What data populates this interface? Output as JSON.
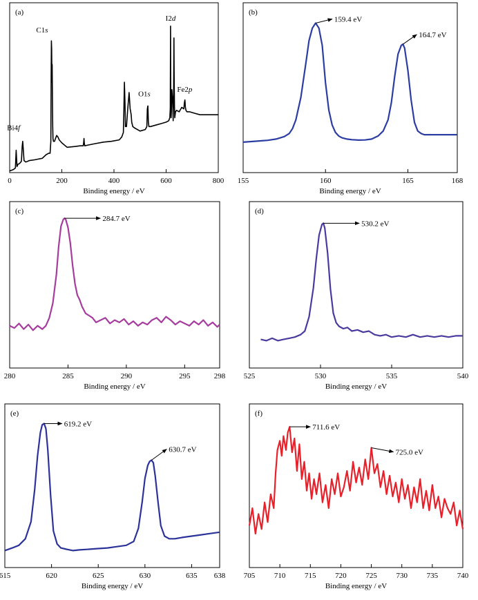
{
  "chart_data": [
    {
      "id": "a",
      "type": "line",
      "panel_label": "(a)",
      "xlabel": "Binding energy / eV",
      "ylabel": "",
      "xlim": [
        0,
        800
      ],
      "ylim": [
        0,
        1
      ],
      "xticks": [
        0,
        200,
        400,
        600,
        800
      ],
      "grid": false,
      "series": [
        {
          "color": "#000000",
          "x": [
            0,
            8,
            15,
            22,
            25,
            28,
            32,
            38,
            45,
            48,
            50,
            52,
            55,
            62,
            75,
            95,
            110,
            125,
            140,
            150,
            155,
            158,
            159,
            160,
            161,
            162,
            163,
            164,
            165,
            166,
            168,
            172,
            176,
            180,
            185,
            190,
            200,
            220,
            250,
            270,
            282,
            284,
            285,
            286,
            288,
            300,
            330,
            360,
            390,
            420,
            430,
            436,
            438,
            440,
            442,
            444,
            448,
            452,
            458,
            462,
            464,
            466,
            468,
            472,
            480,
            500,
            520,
            526,
            528,
            530,
            532,
            534,
            540,
            560,
            580,
            600,
            610,
            614,
            616,
            617,
            618,
            619,
            620,
            622,
            625,
            627,
            629,
            630,
            631,
            632,
            633,
            636,
            640,
            650,
            660,
            668,
            670,
            672,
            674,
            676,
            680,
            690,
            710,
            730,
            760,
            800
          ],
          "y": [
            0.0,
            0.005,
            0.01,
            0.02,
            0.14,
            0.03,
            0.045,
            0.05,
            0.065,
            0.165,
            0.2,
            0.155,
            0.07,
            0.06,
            0.07,
            0.075,
            0.08,
            0.085,
            0.11,
            0.12,
            0.12,
            0.2,
            0.6,
            0.88,
            0.82,
            0.6,
            0.72,
            0.5,
            0.3,
            0.22,
            0.2,
            0.2,
            0.22,
            0.24,
            0.23,
            0.21,
            0.19,
            0.16,
            0.165,
            0.17,
            0.17,
            0.195,
            0.22,
            0.19,
            0.17,
            0.175,
            0.185,
            0.195,
            0.2,
            0.21,
            0.23,
            0.26,
            0.4,
            0.6,
            0.47,
            0.3,
            0.3,
            0.4,
            0.53,
            0.42,
            0.4,
            0.38,
            0.33,
            0.3,
            0.29,
            0.27,
            0.28,
            0.3,
            0.42,
            0.44,
            0.33,
            0.3,
            0.3,
            0.31,
            0.32,
            0.33,
            0.34,
            0.36,
            0.42,
            0.98,
            0.45,
            0.36,
            0.4,
            0.55,
            0.48,
            0.34,
            0.55,
            0.9,
            0.6,
            0.44,
            0.36,
            0.4,
            0.41,
            0.4,
            0.43,
            0.42,
            0.46,
            0.48,
            0.43,
            0.41,
            0.4,
            0.4,
            0.39,
            0.38,
            0.38,
            0.38
          ]
        }
      ],
      "annotations": [
        {
          "text": "Bi4",
          "italic": "f",
          "x": 48,
          "y": 0.2
        },
        {
          "text": "C1",
          "italic": "s",
          "x": 160,
          "y": 0.88
        },
        {
          "text": "O1",
          "italic": "s",
          "x": 530,
          "y": 0.44
        },
        {
          "text": "I2",
          "italic": "d",
          "x": 619,
          "y": 0.98
        },
        {
          "text": "Fe2",
          "italic": "p",
          "x": 674,
          "y": 0.48
        }
      ]
    },
    {
      "id": "b",
      "type": "line",
      "panel_label": "(b)",
      "xlabel": "Binding energy / eV",
      "ylabel": "",
      "xlim": [
        155,
        168
      ],
      "ylim": [
        0,
        1
      ],
      "xticks": [
        155,
        160,
        165,
        168
      ],
      "grid": false,
      "series": [
        {
          "color": "#2B3DA3",
          "x": [
            155,
            155.5,
            156,
            156.5,
            157,
            157.5,
            157.8,
            158,
            158.2,
            158.5,
            158.8,
            159,
            159.2,
            159.4,
            159.6,
            159.8,
            160,
            160.2,
            160.4,
            160.6,
            160.8,
            161,
            161.3,
            161.6,
            162,
            162.4,
            162.8,
            163.2,
            163.5,
            163.8,
            164,
            164.2,
            164.4,
            164.6,
            164.7,
            164.8,
            165,
            165.2,
            165.4,
            165.6,
            165.8,
            166,
            166.3,
            166.6,
            167,
            167.5,
            168
          ],
          "y": [
            0.04,
            0.045,
            0.05,
            0.055,
            0.065,
            0.085,
            0.11,
            0.15,
            0.22,
            0.4,
            0.67,
            0.86,
            0.96,
            1.0,
            0.96,
            0.82,
            0.52,
            0.3,
            0.18,
            0.12,
            0.09,
            0.075,
            0.065,
            0.06,
            0.057,
            0.058,
            0.065,
            0.09,
            0.13,
            0.22,
            0.36,
            0.57,
            0.75,
            0.82,
            0.83,
            0.8,
            0.62,
            0.38,
            0.2,
            0.13,
            0.11,
            0.1,
            0.1,
            0.1,
            0.1,
            0.1,
            0.1
          ]
        }
      ],
      "annotations": [
        {
          "text": "159.4 eV",
          "x": 159.4,
          "y": 1.0
        },
        {
          "text": "164.7 eV",
          "x": 164.7,
          "y": 0.83
        }
      ]
    },
    {
      "id": "c",
      "type": "line",
      "panel_label": "(c)",
      "xlabel": "Binding energy / eV",
      "ylabel": "",
      "xlim": [
        280,
        298
      ],
      "ylim": [
        0,
        1
      ],
      "xticks": [
        280,
        285,
        290,
        295,
        298
      ],
      "grid": false,
      "series": [
        {
          "color": "#A63C9E",
          "x": [
            280,
            280.4,
            280.8,
            281.2,
            281.6,
            282,
            282.4,
            282.8,
            283.1,
            283.4,
            283.7,
            284,
            284.2,
            284.4,
            284.6,
            284.7,
            284.8,
            285,
            285.2,
            285.4,
            285.6,
            285.8,
            286,
            286.2,
            286.5,
            286.8,
            287.1,
            287.4,
            287.8,
            288.2,
            288.6,
            289,
            289.4,
            289.8,
            290.2,
            290.6,
            291,
            291.4,
            291.8,
            292.2,
            292.6,
            293,
            293.4,
            293.8,
            294.2,
            294.6,
            295,
            295.4,
            295.8,
            296.2,
            296.6,
            297,
            297.4,
            297.8,
            298
          ],
          "y": [
            0.05,
            0.03,
            0.07,
            0.02,
            0.06,
            0.01,
            0.05,
            0.02,
            0.05,
            0.12,
            0.25,
            0.5,
            0.75,
            0.93,
            0.99,
            1.0,
            0.99,
            0.92,
            0.78,
            0.58,
            0.42,
            0.32,
            0.28,
            0.22,
            0.16,
            0.14,
            0.12,
            0.08,
            0.1,
            0.12,
            0.07,
            0.1,
            0.08,
            0.11,
            0.06,
            0.09,
            0.05,
            0.08,
            0.06,
            0.1,
            0.12,
            0.08,
            0.13,
            0.1,
            0.06,
            0.09,
            0.07,
            0.05,
            0.09,
            0.06,
            0.1,
            0.05,
            0.08,
            0.04,
            0.06
          ]
        }
      ],
      "annotations": [
        {
          "text": "284.7 eV",
          "x": 284.7,
          "y": 1.0
        }
      ]
    },
    {
      "id": "d",
      "type": "line",
      "panel_label": "(d)",
      "xlabel": "Binding energy / eV",
      "ylabel": "",
      "xlim": [
        525,
        540
      ],
      "ylim": [
        0,
        1
      ],
      "xticks": [
        525,
        530,
        535,
        540
      ],
      "grid": false,
      "series": [
        {
          "color": "#4A3A9F",
          "x": [
            525.8,
            526.2,
            526.6,
            527,
            527.4,
            527.8,
            528.2,
            528.6,
            528.9,
            529.2,
            529.5,
            529.7,
            529.9,
            530.1,
            530.2,
            530.3,
            530.5,
            530.7,
            530.9,
            531.1,
            531.3,
            531.6,
            531.9,
            532.2,
            532.6,
            533,
            533.4,
            533.8,
            534.2,
            534.6,
            535,
            535.5,
            536,
            536.5,
            537,
            537.5,
            538,
            538.5,
            539,
            539.5,
            540
          ],
          "y": [
            0.03,
            0.02,
            0.04,
            0.02,
            0.03,
            0.04,
            0.05,
            0.07,
            0.1,
            0.22,
            0.46,
            0.7,
            0.9,
            0.99,
            1.0,
            0.96,
            0.75,
            0.45,
            0.25,
            0.17,
            0.14,
            0.12,
            0.13,
            0.1,
            0.11,
            0.09,
            0.1,
            0.07,
            0.06,
            0.07,
            0.05,
            0.06,
            0.05,
            0.07,
            0.05,
            0.06,
            0.05,
            0.06,
            0.05,
            0.06,
            0.06
          ]
        }
      ],
      "annotations": [
        {
          "text": "530.2 eV",
          "x": 530.2,
          "y": 1.0
        }
      ]
    },
    {
      "id": "e",
      "type": "line",
      "panel_label": "(e)",
      "xlabel": "Binding energy / eV",
      "ylabel": "",
      "xlim": [
        615,
        638
      ],
      "ylim": [
        0,
        1
      ],
      "xticks": [
        615,
        620,
        625,
        630,
        635,
        638
      ],
      "grid": false,
      "series": [
        {
          "color": "#2B3299",
          "x": [
            615,
            615.8,
            616.5,
            617.2,
            617.8,
            618.2,
            618.5,
            618.8,
            619,
            619.2,
            619.4,
            619.6,
            619.9,
            620.2,
            620.6,
            621,
            621.6,
            622.3,
            623,
            624,
            625,
            626,
            627,
            628,
            628.8,
            629.3,
            629.7,
            630,
            630.3,
            630.5,
            630.7,
            630.9,
            631.1,
            631.4,
            631.7,
            632.1,
            632.6,
            633.2,
            634,
            635,
            636,
            637,
            638
          ],
          "y": [
            0.03,
            0.05,
            0.07,
            0.12,
            0.25,
            0.5,
            0.75,
            0.93,
            0.99,
            1.0,
            0.96,
            0.8,
            0.45,
            0.18,
            0.08,
            0.05,
            0.04,
            0.03,
            0.035,
            0.04,
            0.045,
            0.05,
            0.06,
            0.07,
            0.1,
            0.2,
            0.4,
            0.58,
            0.68,
            0.71,
            0.72,
            0.7,
            0.6,
            0.4,
            0.22,
            0.14,
            0.12,
            0.12,
            0.13,
            0.14,
            0.15,
            0.16,
            0.17
          ]
        }
      ],
      "annotations": [
        {
          "text": "619.2 eV",
          "x": 619.2,
          "y": 1.0
        },
        {
          "text": "630.7 eV",
          "x": 630.7,
          "y": 0.72
        }
      ]
    },
    {
      "id": "f",
      "type": "line",
      "panel_label": "(f)",
      "xlabel": "Binding energy / eV",
      "ylabel": "",
      "xlim": [
        705,
        740
      ],
      "ylim": [
        0,
        1
      ],
      "xticks": [
        705,
        710,
        715,
        720,
        725,
        730,
        735,
        740
      ],
      "grid": false,
      "series": [
        {
          "color": "#E8202A",
          "x": [
            705,
            705.5,
            706,
            706.5,
            707,
            707.5,
            708,
            708.5,
            709,
            709.3,
            709.6,
            710,
            710.3,
            710.6,
            711,
            711.3,
            711.6,
            712,
            712.4,
            712.8,
            713.2,
            713.6,
            714,
            714.4,
            714.8,
            715.2,
            715.6,
            716,
            716.5,
            717,
            717.5,
            718,
            718.5,
            719,
            719.5,
            720,
            720.5,
            721,
            721.5,
            722,
            722.5,
            723,
            723.5,
            724,
            724.5,
            725,
            725.5,
            726,
            726.5,
            727,
            727.5,
            728,
            728.5,
            729,
            729.5,
            730,
            730.5,
            731,
            731.5,
            732,
            732.5,
            733,
            733.5,
            734,
            734.5,
            735,
            735.5,
            736,
            736.5,
            737,
            737.5,
            738,
            738.5,
            739,
            739.5,
            740
          ],
          "y": [
            0.15,
            0.3,
            0.08,
            0.25,
            0.12,
            0.35,
            0.18,
            0.42,
            0.3,
            0.6,
            0.8,
            0.88,
            0.75,
            0.92,
            0.8,
            0.95,
            1.0,
            0.78,
            0.9,
            0.62,
            0.85,
            0.55,
            0.7,
            0.45,
            0.6,
            0.38,
            0.55,
            0.42,
            0.6,
            0.35,
            0.5,
            0.3,
            0.55,
            0.42,
            0.6,
            0.4,
            0.48,
            0.62,
            0.45,
            0.7,
            0.52,
            0.65,
            0.5,
            0.72,
            0.55,
            0.82,
            0.6,
            0.68,
            0.48,
            0.62,
            0.42,
            0.58,
            0.4,
            0.52,
            0.35,
            0.55,
            0.38,
            0.5,
            0.3,
            0.48,
            0.35,
            0.55,
            0.3,
            0.45,
            0.28,
            0.5,
            0.3,
            0.4,
            0.22,
            0.38,
            0.3,
            0.25,
            0.35,
            0.15,
            0.28,
            0.12
          ]
        }
      ],
      "annotations": [
        {
          "text": "711.6 eV",
          "x": 711.6,
          "y": 1.0
        },
        {
          "text": "725.0 eV",
          "x": 725.0,
          "y": 0.82
        }
      ]
    }
  ]
}
